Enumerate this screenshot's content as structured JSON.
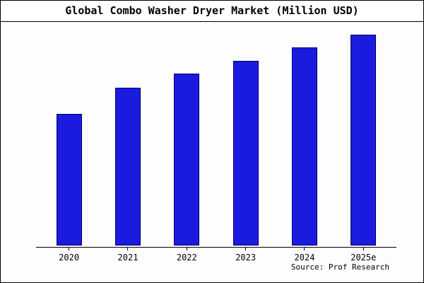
{
  "title": "Global Combo Washer Dryer Market (Million USD)",
  "source": "Source: Prof Research",
  "colors": {
    "bar_fill": "#1b1be0",
    "bar_border": "#000066",
    "axis": "#000000",
    "background": "#ffffff"
  },
  "chart_data": {
    "type": "bar",
    "categories": [
      "2020",
      "2021",
      "2022",
      "2023",
      "2024",
      "2025e"
    ],
    "values": [
      186,
      223,
      243,
      261,
      280,
      298
    ],
    "title": "Global Combo Washer Dryer Market (Million USD)",
    "xlabel": "",
    "ylabel": "",
    "ylim": [
      0,
      310
    ],
    "grid": false,
    "legend": "none",
    "source": "Source: Prof Research"
  }
}
